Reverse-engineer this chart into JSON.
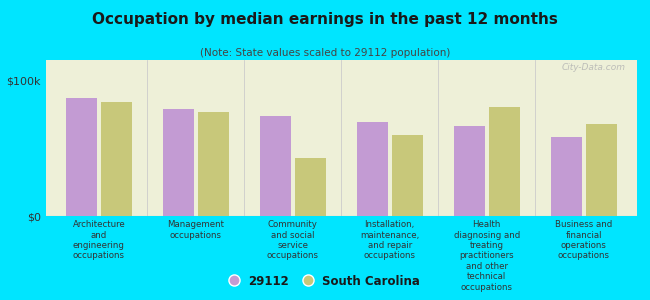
{
  "title": "Occupation by median earnings in the past 12 months",
  "subtitle": "(Note: State values scaled to 29112 population)",
  "categories": [
    "Architecture\nand\nengineering\noccupations",
    "Management\noccupations",
    "Community\nand social\nservice\noccupations",
    "Installation,\nmaintenance,\nand repair\noccupations",
    "Health\ndiagnosing and\ntreating\npractitioners\nand other\ntechnical\noccupations",
    "Business and\nfinancial\noperations\noccupations"
  ],
  "values_29112": [
    87000,
    79000,
    74000,
    69000,
    66000,
    58000
  ],
  "values_sc": [
    84000,
    77000,
    43000,
    60000,
    80000,
    68000
  ],
  "color_29112": "#c39bd3",
  "color_sc": "#c8c87a",
  "background_chart": "#eef0d8",
  "background_fig": "#00e5ff",
  "yticks": [
    0,
    100000
  ],
  "ytick_labels": [
    "$0",
    "$100k"
  ],
  "legend_label_29112": "29112",
  "legend_label_sc": "South Carolina",
  "watermark": "City-Data.com",
  "ylim_max": 115000
}
